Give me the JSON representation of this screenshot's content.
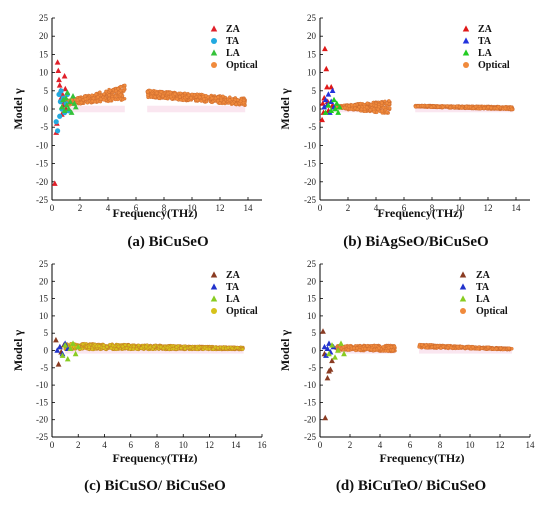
{
  "colors": {
    "ZA_a": "#e0202a",
    "TA_a": "#22a9e0",
    "LA_a": "#35c23a",
    "Optical_a": "#f08a3c",
    "ZA_b": "#e01818",
    "TA_b": "#2233dd",
    "LA_b": "#22cc22",
    "Optical_b": "#f08a3c",
    "ZA_c": "#8a3b22",
    "TA_c": "#2233cc",
    "LA_c": "#88cc22",
    "Optical_c": "#d6c21a",
    "ZA_d": "#8a3b22",
    "TA_d": "#2233cc",
    "LA_d": "#88cc22",
    "Optical_d": "#f08a3c",
    "band_shade": "#f7d6e6"
  },
  "chart_data": [
    {
      "type": "scatter",
      "caption": "(a) BiCuSeO",
      "xlabel": "Frequency(THz)",
      "ylabel": "Model γ",
      "xlim": [
        0,
        15
      ],
      "ylim": [
        -25,
        25
      ],
      "xticks": [
        "0",
        "2",
        "4",
        "6",
        "8",
        "10",
        "12",
        "14"
      ],
      "yticks": [
        "25",
        "20",
        "15",
        "10",
        "5",
        "0",
        "-5",
        "-10",
        "-15",
        "-20",
        "-25"
      ],
      "legend": [
        "ZA",
        "TA",
        "LA",
        "Optical"
      ],
      "series": [
        {
          "name": "ZA",
          "marker": "triangle",
          "color": "ZA_a",
          "points": [
            [
              0.2,
              -20.5
            ],
            [
              0.3,
              -6.5
            ],
            [
              0.35,
              -4
            ],
            [
              0.4,
              12.8
            ],
            [
              0.45,
              10.5
            ],
            [
              0.5,
              8
            ],
            [
              0.55,
              6.5
            ],
            [
              0.6,
              5
            ],
            [
              0.65,
              3
            ],
            [
              0.7,
              -1.5
            ],
            [
              0.75,
              4
            ],
            [
              0.8,
              2
            ],
            [
              0.85,
              1
            ],
            [
              0.9,
              9
            ],
            [
              0.95,
              5.5
            ],
            [
              1.0,
              0
            ]
          ]
        },
        {
          "name": "TA",
          "marker": "circle",
          "color": "TA_a",
          "points": [
            [
              0.3,
              -3.5
            ],
            [
              0.4,
              -6
            ],
            [
              0.5,
              4
            ],
            [
              0.55,
              -2
            ],
            [
              0.6,
              2
            ],
            [
              0.65,
              5
            ],
            [
              0.7,
              0
            ],
            [
              0.8,
              3
            ],
            [
              0.9,
              -1
            ],
            [
              1.0,
              1.5
            ],
            [
              1.1,
              4
            ],
            [
              1.2,
              -0.5
            ]
          ]
        },
        {
          "name": "LA",
          "marker": "triangle",
          "color": "LA_a",
          "points": [
            [
              0.7,
              0.5
            ],
            [
              0.8,
              2.5
            ],
            [
              0.9,
              -0.5
            ],
            [
              1.0,
              3
            ],
            [
              1.05,
              1
            ],
            [
              1.1,
              4.5
            ],
            [
              1.2,
              0
            ],
            [
              1.3,
              2
            ],
            [
              1.4,
              -1
            ],
            [
              1.5,
              3.5
            ],
            [
              1.6,
              1.5
            ],
            [
              1.7,
              0.5
            ]
          ]
        },
        {
          "name": "Optical",
          "marker": "circle",
          "color": "Optical_a",
          "bands": [
            [
              0.8,
              5.2,
              1.5,
              4.5,
              0.5,
              2.0
            ],
            [
              6.8,
              13.8,
              4.2,
              2.0,
              1.0,
              1.0
            ]
          ]
        }
      ]
    },
    {
      "type": "scatter",
      "caption": "(b) BiAgSeO/BiCuSeO",
      "xlabel": "Frequency(THz)",
      "ylabel": "Model γ",
      "xlim": [
        0,
        15
      ],
      "ylim": [
        -25,
        25
      ],
      "xticks": [
        "0",
        "2",
        "4",
        "6",
        "8",
        "10",
        "12",
        "14"
      ],
      "yticks": [
        "25",
        "20",
        "15",
        "10",
        "5",
        "0",
        "-5",
        "-10",
        "-15",
        "-20",
        "-25"
      ],
      "legend": [
        "ZA",
        "TA",
        "LA",
        "Optical"
      ],
      "series": [
        {
          "name": "ZA",
          "marker": "triangle",
          "color": "ZA_b",
          "points": [
            [
              0.15,
              -3
            ],
            [
              0.2,
              1.5
            ],
            [
              0.25,
              -1
            ],
            [
              0.3,
              3
            ],
            [
              0.35,
              16.5
            ],
            [
              0.45,
              11
            ],
            [
              0.5,
              6
            ],
            [
              0.55,
              2
            ],
            [
              0.6,
              -0.5
            ],
            [
              0.8,
              6
            ],
            [
              0.9,
              1
            ]
          ]
        },
        {
          "name": "TA",
          "marker": "triangle",
          "color": "TA_b",
          "points": [
            [
              0.3,
              0.5
            ],
            [
              0.4,
              2.5
            ],
            [
              0.5,
              1
            ],
            [
              0.6,
              4
            ],
            [
              0.7,
              -1
            ],
            [
              0.8,
              2
            ],
            [
              0.9,
              5
            ],
            [
              1.0,
              0.5
            ]
          ]
        },
        {
          "name": "LA",
          "marker": "triangle",
          "color": "LA_b",
          "points": [
            [
              0.4,
              -1
            ],
            [
              0.6,
              1
            ],
            [
              0.8,
              -0.5
            ],
            [
              1.0,
              2.5
            ],
            [
              1.1,
              0
            ],
            [
              1.2,
              1.5
            ],
            [
              1.3,
              -1
            ],
            [
              1.4,
              0.5
            ]
          ]
        },
        {
          "name": "Optical",
          "marker": "circle",
          "color": "Optical_b",
          "bands": [
            [
              0.8,
              5.0,
              0.5,
              0.5,
              0.2,
              1.8
            ],
            [
              6.8,
              13.8,
              0.8,
              0.2,
              0.2,
              0.4
            ]
          ]
        }
      ]
    },
    {
      "type": "scatter",
      "caption": "(c) BiCuSO/ BiCuSeO",
      "xlabel": "Frequency(THz)",
      "ylabel": "Model γ",
      "xlim": [
        0,
        16
      ],
      "ylim": [
        -25,
        25
      ],
      "xticks": [
        "0",
        "2",
        "4",
        "6",
        "8",
        "10",
        "12",
        "14",
        "16"
      ],
      "yticks": [
        "25",
        "20",
        "15",
        "10",
        "5",
        "0",
        "-5",
        "-10",
        "-15",
        "-20",
        "-25"
      ],
      "legend": [
        "ZA",
        "TA",
        "LA",
        "Optical"
      ],
      "series": [
        {
          "name": "ZA",
          "marker": "triangle",
          "color": "ZA_c",
          "points": [
            [
              0.3,
              3
            ],
            [
              0.5,
              -4
            ],
            [
              0.6,
              1
            ],
            [
              0.7,
              -0.5
            ],
            [
              0.9,
              1.5
            ]
          ]
        },
        {
          "name": "TA",
          "marker": "triangle",
          "color": "TA_c",
          "points": [
            [
              0.4,
              0
            ],
            [
              0.6,
              1
            ],
            [
              0.8,
              -1
            ],
            [
              1.0,
              2
            ],
            [
              1.2,
              0.5
            ]
          ]
        },
        {
          "name": "LA",
          "marker": "triangle",
          "color": "LA_c",
          "points": [
            [
              0.8,
              -1.5
            ],
            [
              1.0,
              1.5
            ],
            [
              1.2,
              -2.5
            ],
            [
              1.4,
              0.5
            ],
            [
              1.6,
              2
            ],
            [
              1.8,
              -1
            ],
            [
              2.0,
              1
            ]
          ]
        },
        {
          "name": "Optical",
          "marker": "circle",
          "color": "Optical_c",
          "bands": [
            [
              1.0,
              14.6,
              1.2,
              0.6,
              0.9,
              0.3
            ]
          ]
        }
      ]
    },
    {
      "type": "scatter",
      "caption": "(d) BiCuTeO/ BiCuSeO",
      "xlabel": "Frequency(THz)",
      "ylabel": "Model γ",
      "xlim": [
        0,
        14
      ],
      "ylim": [
        -25,
        25
      ],
      "xticks": [
        "0",
        "2",
        "4",
        "6",
        "8",
        "10",
        "12",
        "14"
      ],
      "yticks": [
        "25",
        "20",
        "15",
        "10",
        "5",
        "0",
        "-5",
        "-10",
        "-15",
        "-20",
        "-25"
      ],
      "legend": [
        "ZA",
        "TA",
        "LA",
        "Optical"
      ],
      "series": [
        {
          "name": "ZA",
          "marker": "triangle",
          "color": "ZA_d",
          "points": [
            [
              0.2,
              5.5
            ],
            [
              0.3,
              -1
            ],
            [
              0.35,
              -19.5
            ],
            [
              0.5,
              -8
            ],
            [
              0.6,
              -6
            ],
            [
              0.7,
              -5.5
            ],
            [
              0.8,
              -3
            ]
          ]
        },
        {
          "name": "TA",
          "marker": "triangle",
          "color": "TA_d",
          "points": [
            [
              0.3,
              1
            ],
            [
              0.4,
              -1.5
            ],
            [
              0.5,
              0.5
            ],
            [
              0.6,
              2
            ],
            [
              0.7,
              -0.5
            ],
            [
              0.9,
              1
            ]
          ]
        },
        {
          "name": "LA",
          "marker": "triangle",
          "color": "LA_d",
          "points": [
            [
              0.6,
              -1
            ],
            [
              0.8,
              1.5
            ],
            [
              1.0,
              -2
            ],
            [
              1.2,
              0
            ],
            [
              1.4,
              2
            ],
            [
              1.6,
              -1
            ]
          ]
        },
        {
          "name": "Optical",
          "marker": "circle",
          "color": "Optical_d",
          "bands": [
            [
              1.0,
              5.0,
              0.8,
              0.6,
              0.6,
              0.9
            ],
            [
              6.6,
              12.8,
              1.3,
              0.4,
              0.5,
              0.2
            ]
          ]
        }
      ]
    }
  ]
}
